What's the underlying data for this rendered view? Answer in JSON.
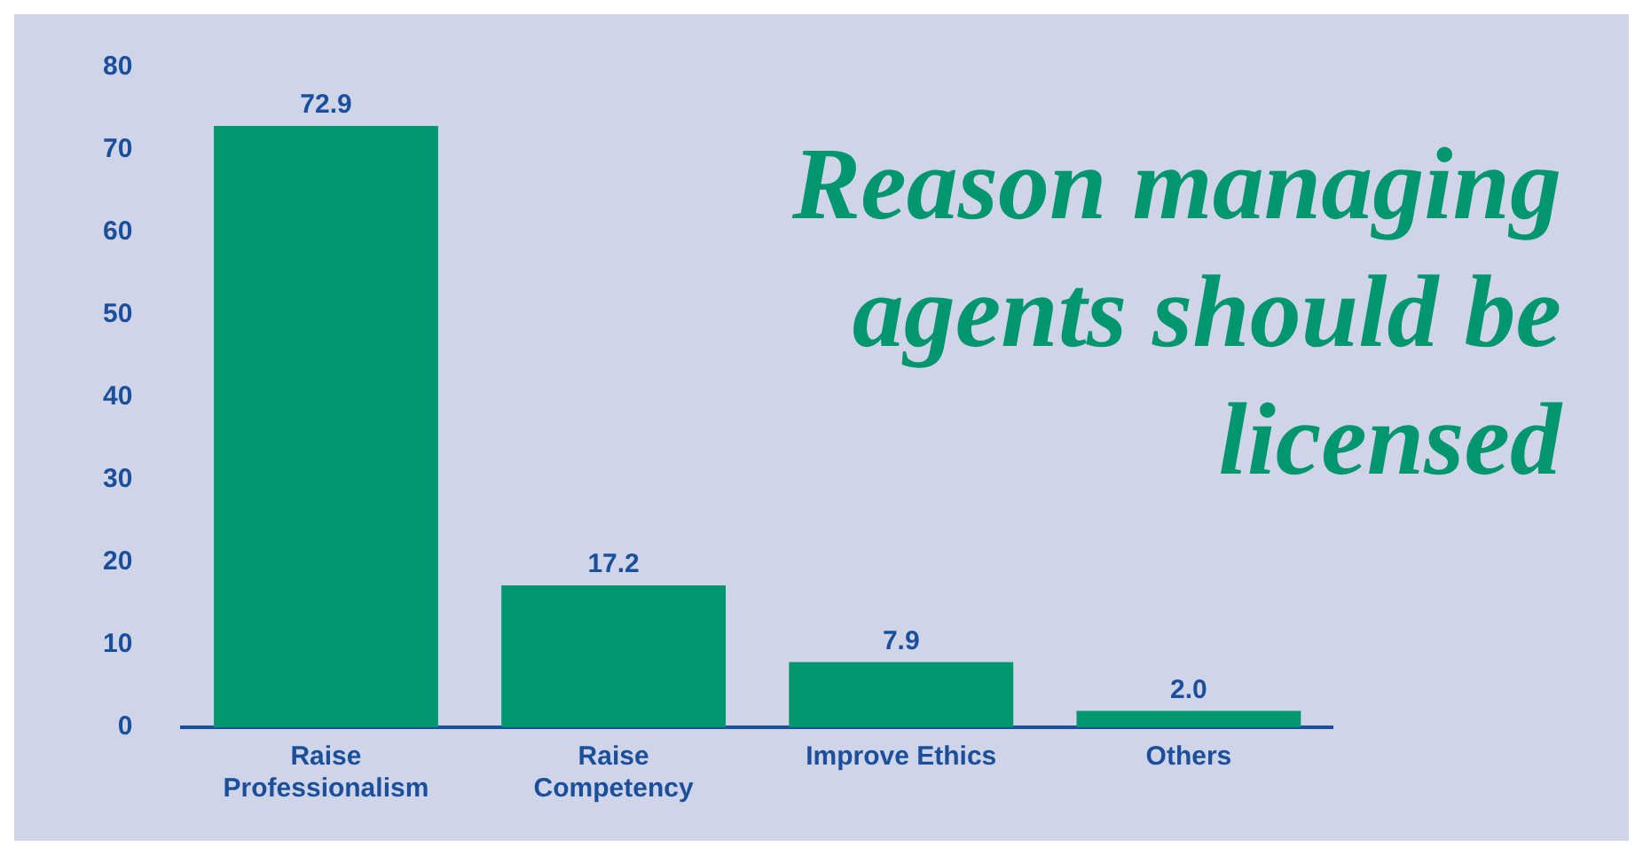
{
  "chart_data": {
    "type": "bar",
    "title": "Reason managing agents should be licensed",
    "categories": [
      "Raise Professionalism",
      "Raise Competency",
      "Improve Ethics",
      "Others"
    ],
    "values": [
      72.9,
      17.2,
      7.9,
      2.0
    ],
    "value_labels": [
      "72.9",
      "17.2",
      "7.9",
      "2.0"
    ],
    "color": "#00966e",
    "ylim": [
      0,
      80
    ],
    "yticks": [
      0,
      10,
      20,
      30,
      40,
      50,
      60,
      70,
      80
    ],
    "grid": false,
    "legend": false
  }
}
